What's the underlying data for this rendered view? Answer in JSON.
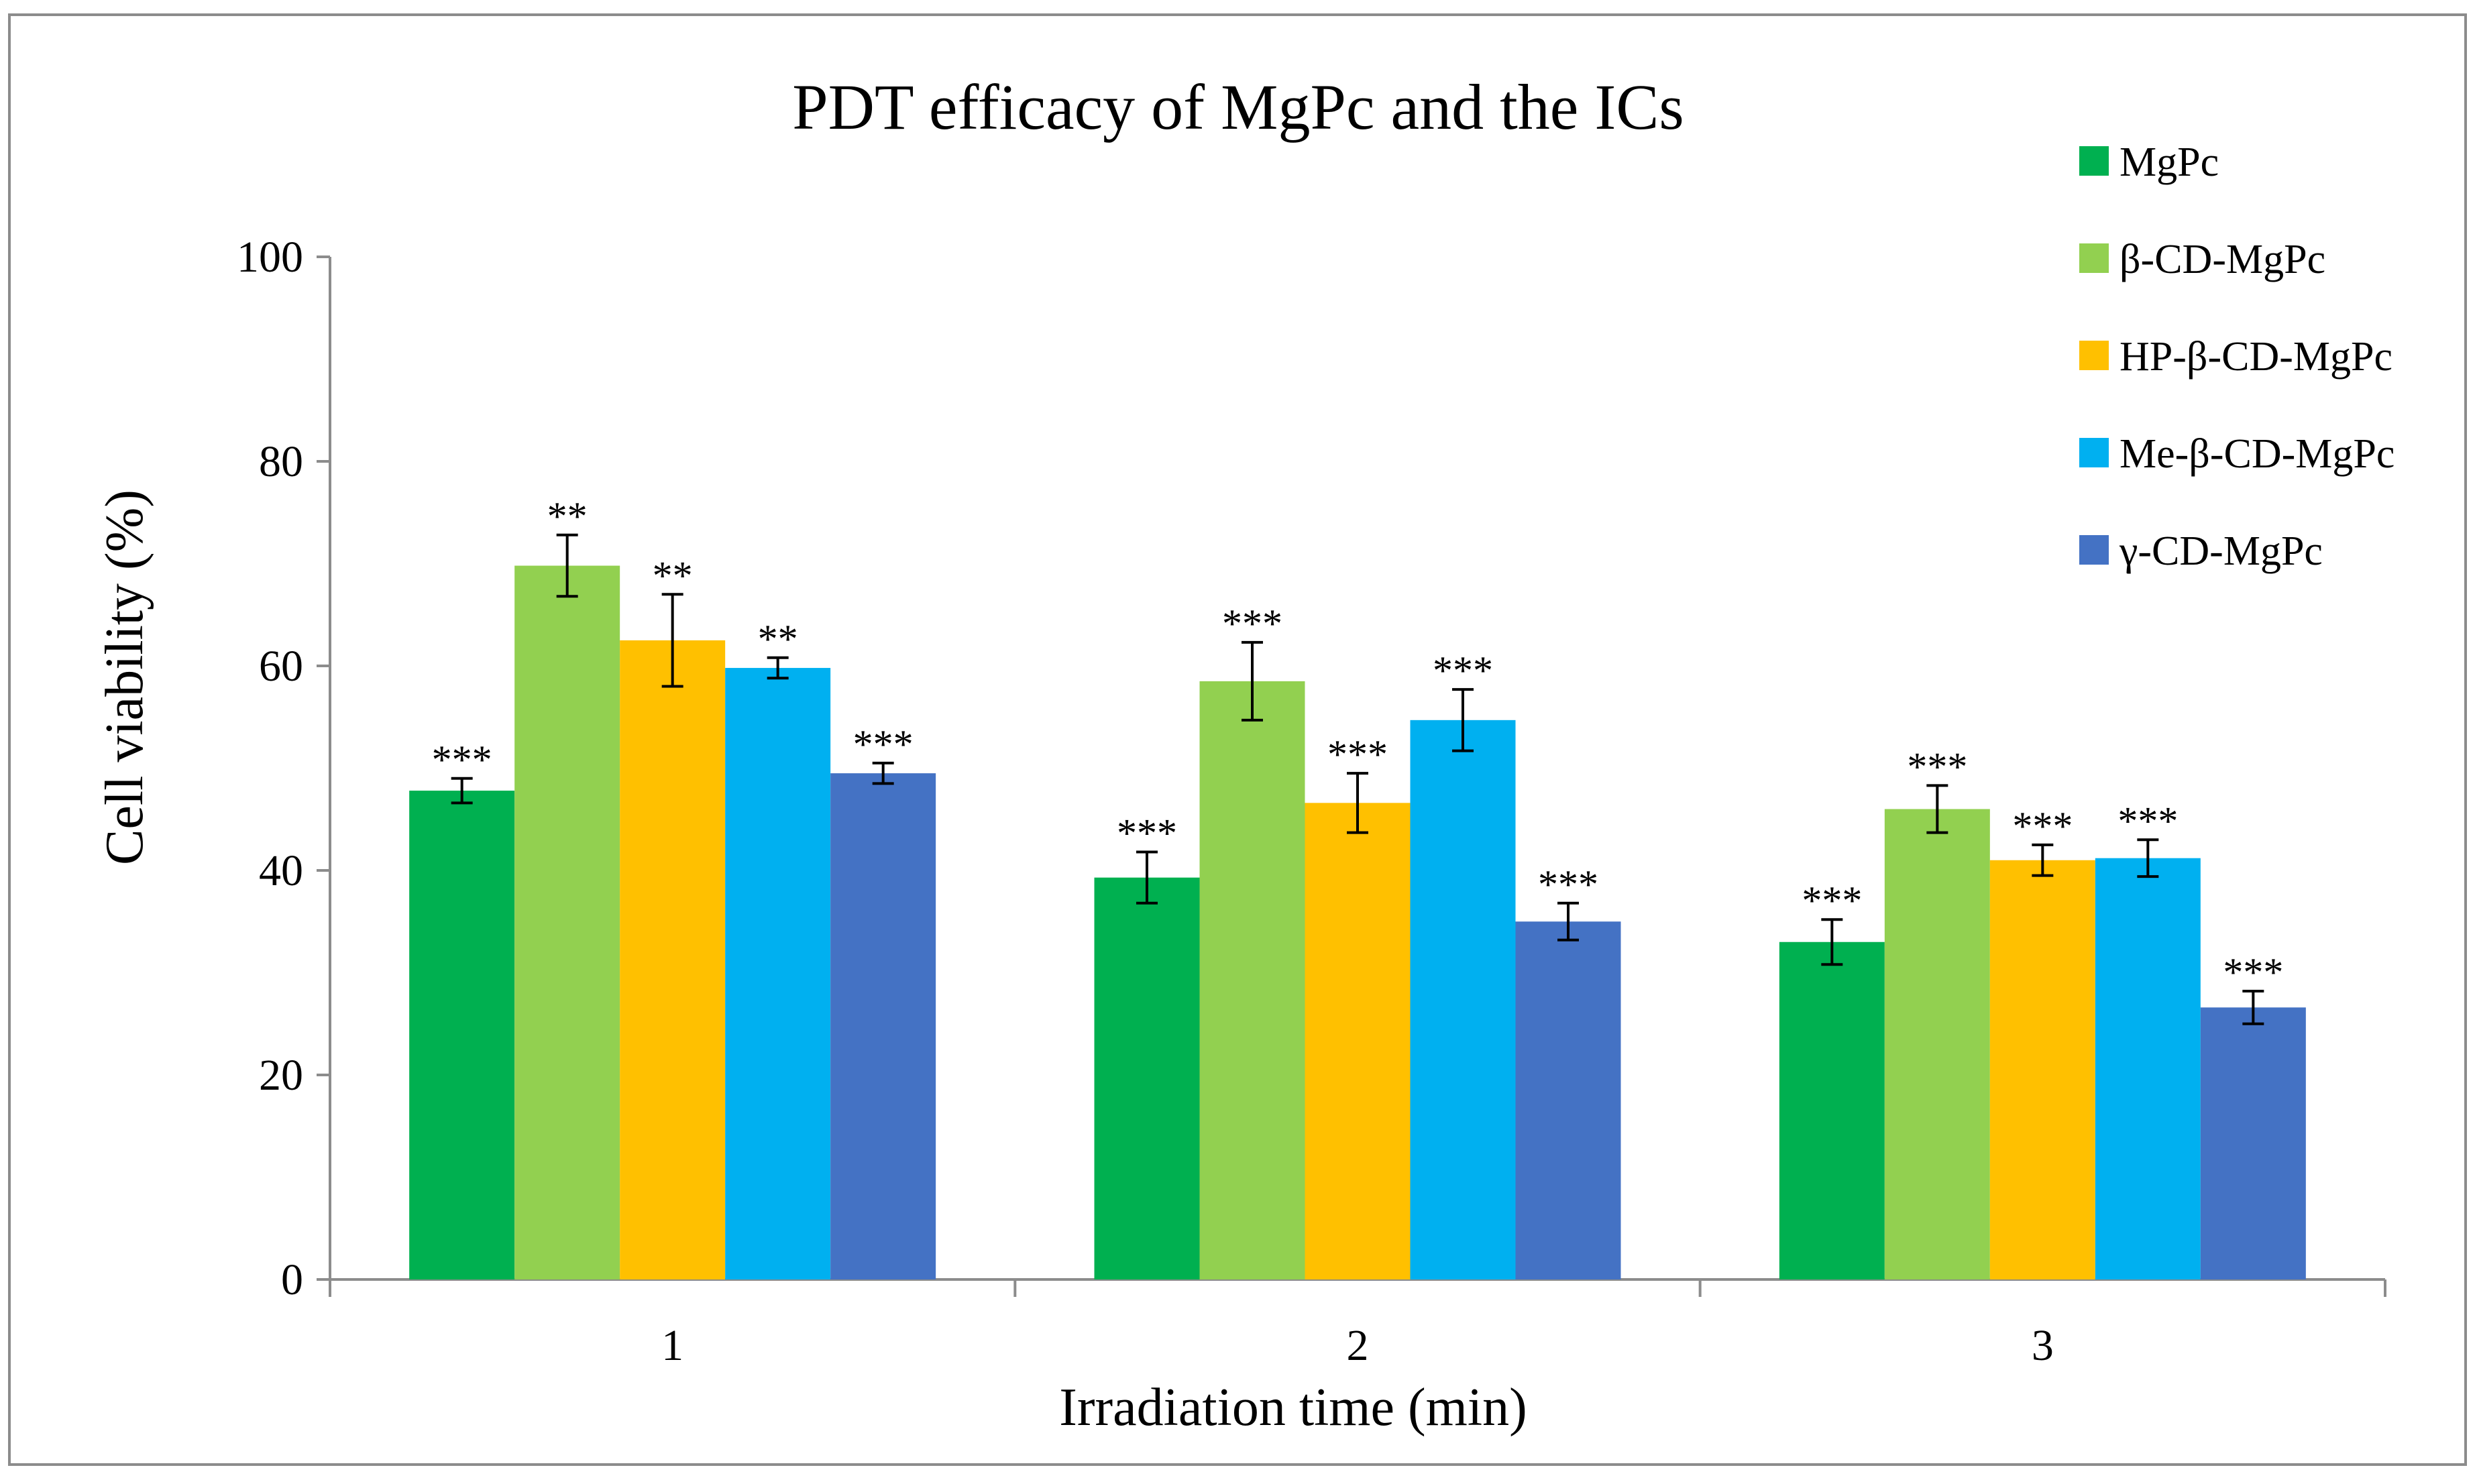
{
  "chart_data": {
    "type": "bar",
    "title": "PDT efficacy of MgPc and the ICs",
    "xlabel": "Irradiation time (min)",
    "ylabel": "Cell viability (%)",
    "ylim": [
      0,
      100
    ],
    "yticks": [
      0,
      20,
      40,
      60,
      80,
      100
    ],
    "grid": false,
    "legend_position": "top-right",
    "categories": [
      "1",
      "2",
      "3"
    ],
    "series": [
      {
        "name": "MgPc",
        "color": "#00B050",
        "values": [
          47.8,
          39.3,
          33.0
        ],
        "errors": [
          1.2,
          2.5,
          2.2
        ],
        "significance": [
          "***",
          "***",
          "***"
        ]
      },
      {
        "name": "β-CD-MgPc",
        "color": "#92D050",
        "values": [
          69.8,
          58.5,
          46.0
        ],
        "errors": [
          3.0,
          3.8,
          2.3
        ],
        "significance": [
          "**",
          "***",
          "***"
        ]
      },
      {
        "name": "HP-β-CD-MgPc",
        "color": "#FFC000",
        "values": [
          62.5,
          46.6,
          41.0
        ],
        "errors": [
          4.5,
          2.9,
          1.5
        ],
        "significance": [
          "**",
          "***",
          "***"
        ]
      },
      {
        "name": "Me-β-CD-MgPc",
        "color": "#00B0F0",
        "values": [
          59.8,
          54.7,
          41.2
        ],
        "errors": [
          1.0,
          3.0,
          1.8
        ],
        "significance": [
          "**",
          "***",
          "***"
        ]
      },
      {
        "name": "γ-CD-MgPc",
        "color": "#4472C4",
        "values": [
          49.5,
          35.0,
          26.6
        ],
        "errors": [
          1.0,
          1.8,
          1.6
        ],
        "significance": [
          "***",
          "***",
          "***"
        ]
      }
    ]
  }
}
